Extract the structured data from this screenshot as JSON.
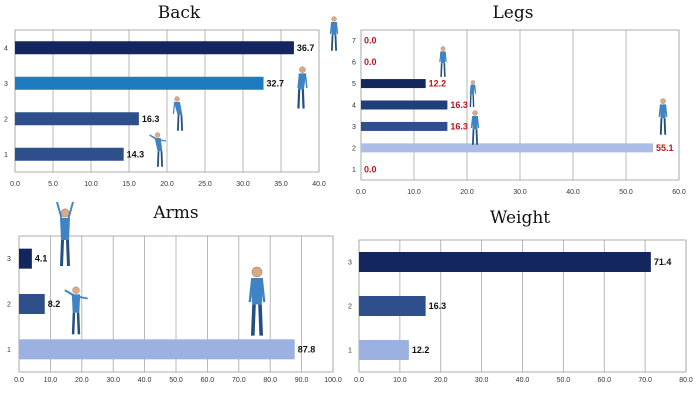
{
  "chart_data": [
    {
      "type": "bar",
      "orientation": "horizontal",
      "title": "Back",
      "categories": [
        "1",
        "2",
        "3",
        "4"
      ],
      "values": [
        14.3,
        16.3,
        32.7,
        36.7
      ],
      "value_labels": [
        "14.3",
        "16.3",
        "32.7",
        "36.7"
      ],
      "bar_colors": [
        "#2e4f8c",
        "#2e4f8c",
        "#1d7cc0",
        "#13265e"
      ],
      "label_color": "#111111",
      "xlim": [
        0,
        40
      ],
      "xticks": [
        "0.0",
        "5.0",
        "10.0",
        "15.0",
        "20.0",
        "25.0",
        "30.0",
        "35.0",
        "40.0"
      ],
      "grid": true,
      "xlabel": "",
      "ylabel": ""
    },
    {
      "type": "bar",
      "orientation": "horizontal",
      "title": "Legs",
      "categories": [
        "1",
        "2",
        "3",
        "4",
        "5",
        "6",
        "7"
      ],
      "values": [
        0.0,
        55.1,
        16.3,
        16.3,
        12.2,
        0.0,
        0.0
      ],
      "value_labels": [
        "0.0",
        "55.1",
        "16.3",
        "16.3",
        "12.2",
        "0.0",
        "0.0"
      ],
      "bar_colors": [
        "#2e4f8c",
        "#a9bde6",
        "#2e4f8c",
        "#1e3f7a",
        "#13265e",
        "#2e4f8c",
        "#2e4f8c"
      ],
      "label_color": "#c0141b",
      "xlim": [
        0,
        60
      ],
      "xticks": [
        "0.0",
        "10.0",
        "20.0",
        "30.0",
        "40.0",
        "50.0",
        "60.0"
      ],
      "grid": true,
      "xlabel": "",
      "ylabel": ""
    },
    {
      "type": "bar",
      "orientation": "horizontal",
      "title": "Arms",
      "categories": [
        "1",
        "2",
        "3"
      ],
      "values": [
        87.8,
        8.2,
        4.1
      ],
      "value_labels": [
        "87.8",
        "8.2",
        "4.1"
      ],
      "bar_colors": [
        "#9bb1e1",
        "#2e4f8c",
        "#13265e"
      ],
      "label_color": "#111111",
      "xlim": [
        0,
        100
      ],
      "xticks": [
        "0.0",
        "10.0",
        "20.0",
        "30.0",
        "40.0",
        "50.0",
        "60.0",
        "70.0",
        "80.0",
        "90.0",
        "100.0"
      ],
      "grid": true,
      "xlabel": "",
      "ylabel": ""
    },
    {
      "type": "bar",
      "orientation": "horizontal",
      "title": "Weight",
      "categories": [
        "1",
        "2",
        "3"
      ],
      "values": [
        12.2,
        16.3,
        71.4
      ],
      "value_labels": [
        "12.2",
        "16.3",
        "71.4"
      ],
      "bar_colors": [
        "#9bb1e1",
        "#2e4f8c",
        "#13265e"
      ],
      "label_color": "#111111",
      "xlim": [
        0,
        80
      ],
      "xticks": [
        "0.0",
        "10.0",
        "20.0",
        "30.0",
        "40.0",
        "50.0",
        "60.0",
        "70.0",
        "80.0"
      ],
      "grid": true,
      "xlabel": "",
      "ylabel": ""
    }
  ]
}
